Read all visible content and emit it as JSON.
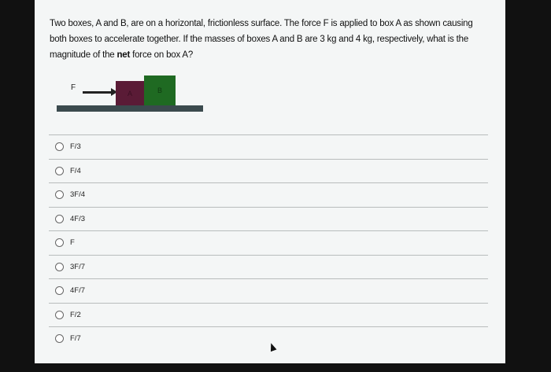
{
  "question": {
    "text_before": "Two boxes, A and B, are on a horizontal, frictionless surface. The force F is applied to box A as shown causing both boxes to accelerate together. If the masses of boxes A and B are 3 kg and 4 kg, respectively, what is the magnitude of the ",
    "text_bold": "net",
    "text_after": " force on box A?"
  },
  "diagram": {
    "force_label": "F",
    "box_a_label": "A",
    "box_b_label": "B",
    "box_a_color": "#5a1b36",
    "box_b_color": "#1f6a22"
  },
  "options": [
    "F/3",
    "F/4",
    "3F/4",
    "4F/3",
    "F",
    "3F/7",
    "4F/7",
    "F/2",
    "F/7"
  ]
}
